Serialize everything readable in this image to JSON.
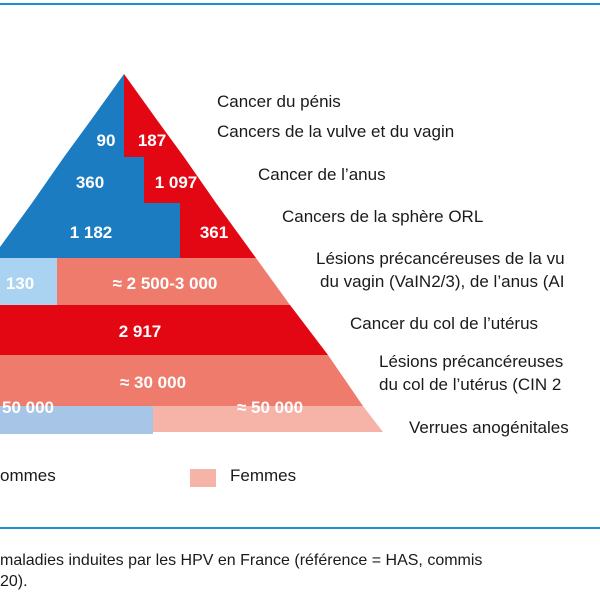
{
  "colors": {
    "men_dark": "#1b7cc1",
    "men_light": "#a9d3f1",
    "men_pale": "#a7c5e6",
    "women_dark": "#e30613",
    "women_mid": "#ee7b6b",
    "women_pale": "#f6b4a8",
    "frame_blue": "#1b8fd6"
  },
  "levels": [
    {
      "label": [
        "Cancer du pénis",
        "Cancers de la vulve et du vagin"
      ],
      "men": "90",
      "women": "187"
    },
    {
      "label": [
        "Cancer de l’anus"
      ],
      "men": "360",
      "women": "1 097"
    },
    {
      "label": [
        "Cancers de la sphère ORL"
      ],
      "men": "1 182",
      "women": "361"
    },
    {
      "label": [
        "Lésions précancéreuses de la vu",
        "du vagin (VaIN2/3), de l’anus (AI"
      ],
      "men": "130",
      "women": "≈ 2 500-3 000"
    },
    {
      "label": [
        "Cancer du col de l’utérus"
      ],
      "men": "",
      "women": "2 917"
    },
    {
      "label": [
        "Lésions précancéreuses",
        "du col de l’utérus (CIN 2"
      ],
      "men": "",
      "women": "≈ 30 000"
    },
    {
      "label": [
        "Verrues anogénitales"
      ],
      "men": "50 000",
      "women": "≈ 50 000"
    }
  ],
  "legend": {
    "men_label": "ommes",
    "women_label": "Femmes"
  },
  "caption": {
    "line1": "maladies induites par les HPV en France (référence = HAS, commis",
    "line2": "20)."
  }
}
